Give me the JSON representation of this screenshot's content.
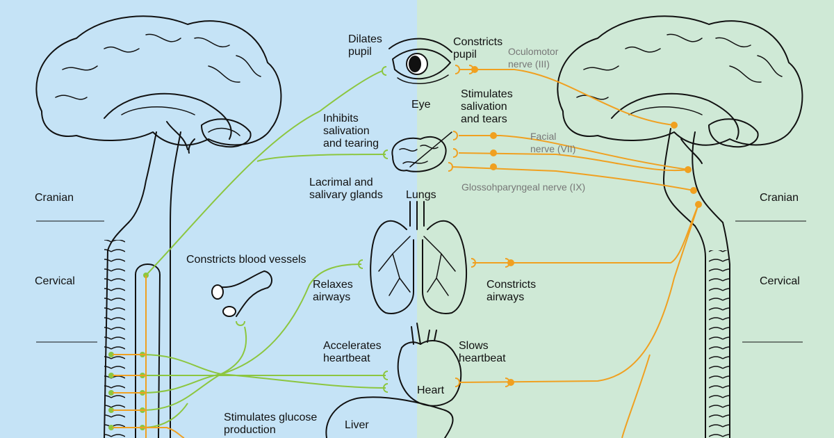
{
  "colors": {
    "sympathetic_bg": "#c5e3f6",
    "parasympathetic_bg": "#cfe9d6",
    "sympathetic_nerve": "#8cc63f",
    "parasympathetic_nerve": "#f0a020"
  },
  "regions": {
    "cranian_left": "Cranian",
    "cervical_left": "Cervical",
    "cranian_right": "Cranian",
    "cervical_right": "Cervical"
  },
  "organs": {
    "eye": "Eye",
    "glands_line1": "Lacrimal and",
    "glands_line2": "salivary glands",
    "lungs": "Lungs",
    "heart": "Heart",
    "liver": "Liver"
  },
  "sympathetic_effects": {
    "pupil_1": "Dilates",
    "pupil_2": "pupil",
    "salivation_1": "Inhibits",
    "salivation_2": "salivation",
    "salivation_3": "and tearing",
    "vessels": "Constricts blood vessels",
    "airways_1": "Relaxes",
    "airways_2": "airways",
    "heart_1": "Accelerates",
    "heart_2": "heartbeat",
    "glucose_1": "Stimulates glucose",
    "glucose_2": "production"
  },
  "parasympathetic_effects": {
    "pupil_1": "Constricts",
    "pupil_2": "pupil",
    "salivation_1": "Stimulates",
    "salivation_2": "salivation",
    "salivation_3": "and tears",
    "airways_1": "Constricts",
    "airways_2": "airways",
    "heart_1": "Slows",
    "heart_2": "heartbeat"
  },
  "nerves": {
    "oculomotor_1": "Oculomotor",
    "oculomotor_2": "nerve (III)",
    "facial_1": "Facial",
    "facial_2": "nerve (VII)",
    "glossopharyngeal": "Glossohparyngeal nerve (IX)"
  }
}
